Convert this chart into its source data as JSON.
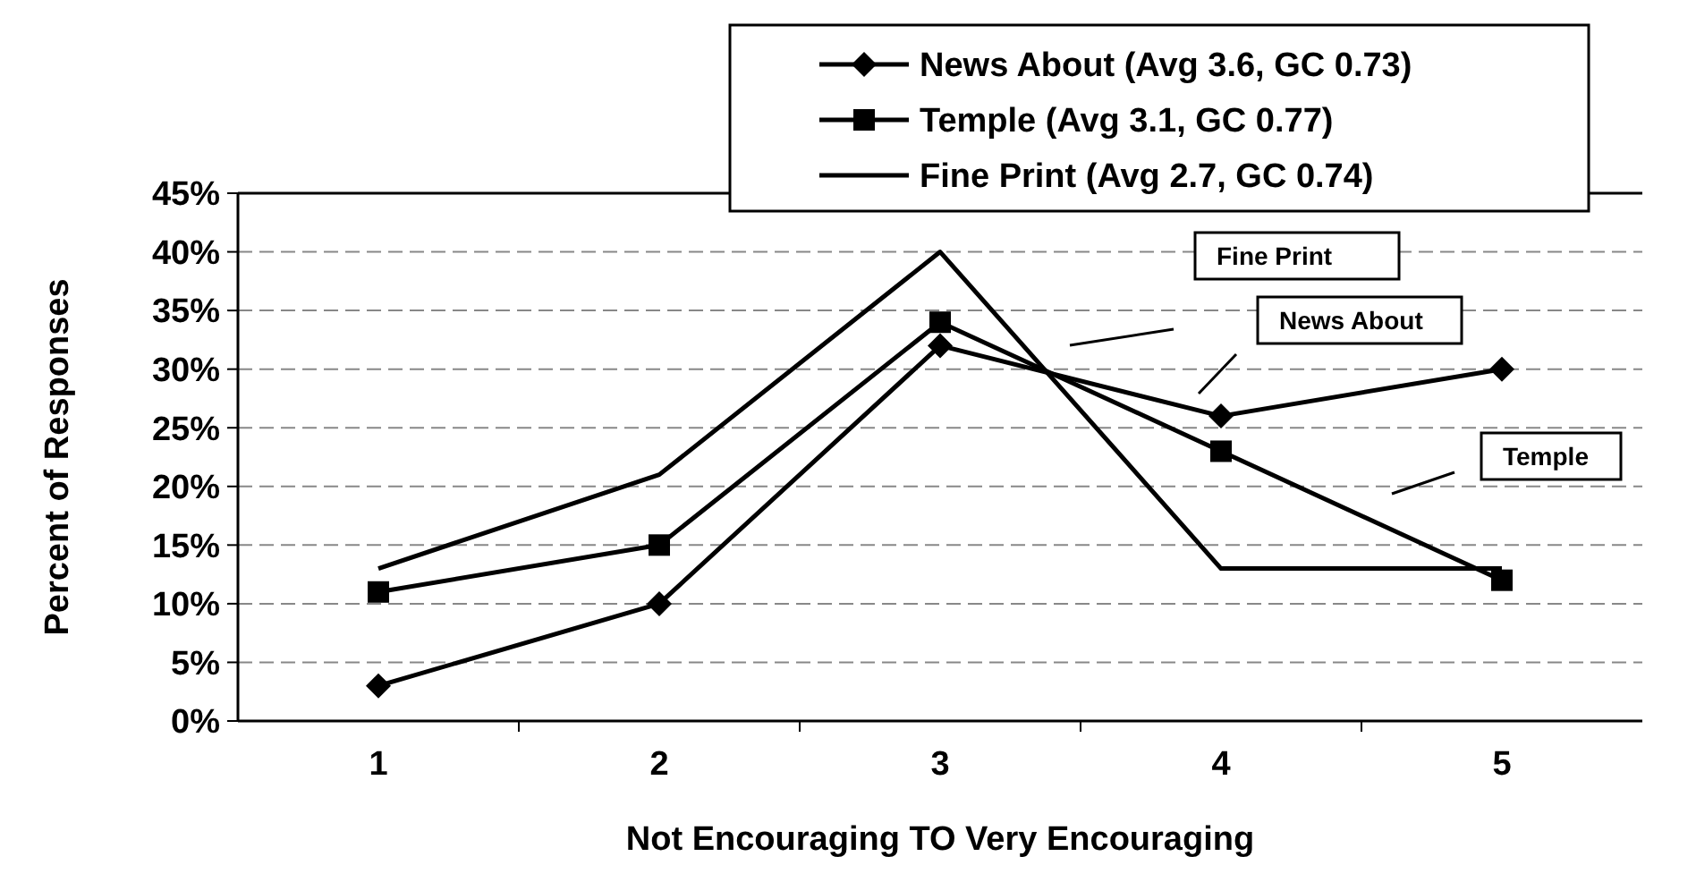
{
  "chart_data": {
    "type": "line",
    "xlabel": "Not Encouraging TO Very Encouraging",
    "ylabel": "Percent of Responses",
    "categories": [
      "1",
      "2",
      "3",
      "4",
      "5"
    ],
    "series": [
      {
        "name": "News About (Avg 3.6, GC 0.73)",
        "color": "#000000",
        "marker": "diamond",
        "values": [
          3,
          10,
          32,
          26,
          30
        ]
      },
      {
        "name": "Temple (Avg 3.1, GC 0.77)",
        "color": "#000000",
        "marker": "square",
        "values": [
          11,
          15,
          34,
          23,
          12
        ]
      },
      {
        "name": "Fine Print (Avg 2.7, GC 0.74)",
        "color": "#000000",
        "marker": "none",
        "values": [
          13,
          21,
          40,
          13,
          13
        ]
      }
    ],
    "ylim": [
      0,
      45
    ],
    "yticks": [
      {
        "value": 0,
        "label": "0%"
      },
      {
        "value": 5,
        "label": "5%"
      },
      {
        "value": 10,
        "label": "10%"
      },
      {
        "value": 15,
        "label": "15%"
      },
      {
        "value": 20,
        "label": "20%"
      },
      {
        "value": 25,
        "label": "25%"
      },
      {
        "value": 30,
        "label": "30%"
      },
      {
        "value": 35,
        "label": "35%"
      },
      {
        "value": 40,
        "label": "40%"
      },
      {
        "value": 45,
        "label": "45%"
      }
    ],
    "grid": "y",
    "legend": "top right",
    "line_style": "solid",
    "annotations": [
      "Fine Print",
      "News About",
      "Temple"
    ]
  }
}
